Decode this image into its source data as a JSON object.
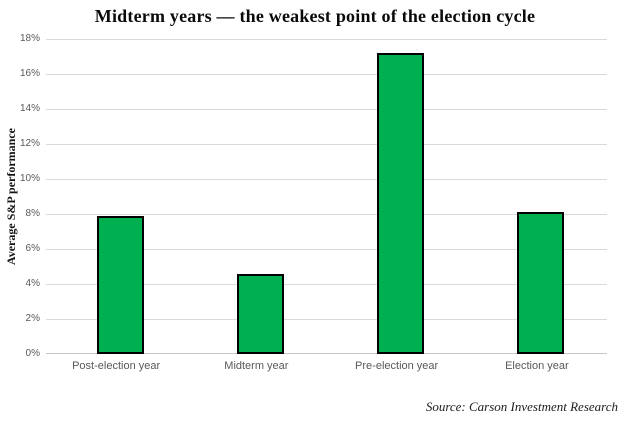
{
  "title": "Midterm years — the weakest point of the election cycle",
  "source": "Source: Carson Investment Research",
  "chart_data": {
    "type": "bar",
    "categories": [
      "Post-election year",
      "Midterm year",
      "Pre-election year",
      "Election year"
    ],
    "values": [
      7.9,
      4.6,
      17.2,
      8.1
    ],
    "title": "Midterm years — the weakest point of the election cycle",
    "xlabel": "",
    "ylabel": "Average S&P performance",
    "ylim": [
      0,
      18
    ],
    "ytick_step": 2,
    "ytick_labels": [
      "0%",
      "2%",
      "4%",
      "6%",
      "8%",
      "10%",
      "12%",
      "14%",
      "16%",
      "18%"
    ],
    "grid": true,
    "legend": false,
    "bar_color": "#00b050",
    "bar_border_color": "#000000",
    "gridline_color": "#d9d9d9",
    "tick_label_color": "#595959"
  }
}
